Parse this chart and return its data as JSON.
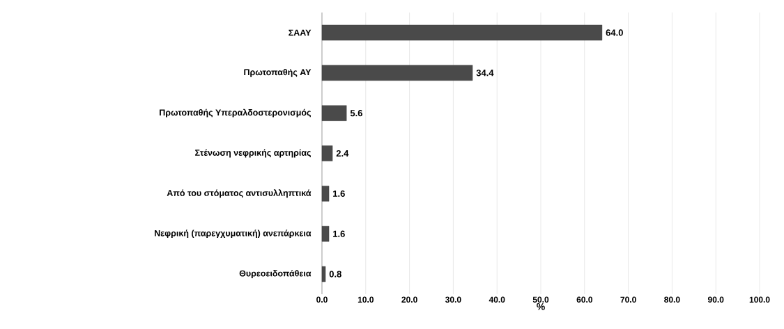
{
  "chart_data": {
    "type": "bar",
    "orientation": "horizontal",
    "categories": [
      "ΣΑΑΥ",
      "Πρωτοπαθής ΑΥ",
      "Πρωτοπαθής Υπεραλδοστερονισμός",
      "Στένωση νεφρικής αρτηρίας",
      "Από του στόματος αντισυλληπτικά",
      "Νεφρική (παρεγχυματική) ανεπάρκεια",
      "Θυρεοειδοπάθεια"
    ],
    "values": [
      64.0,
      34.4,
      5.6,
      2.4,
      1.6,
      1.6,
      0.8
    ],
    "value_labels": [
      "64.0",
      "34.4",
      "5.6",
      "2.4",
      "1.6",
      "1.6",
      "0.8"
    ],
    "color": "#4a4a4a",
    "xlabel": "%",
    "xlim": [
      0,
      100
    ],
    "xticks": [
      {
        "value": 0,
        "label": "0.0"
      },
      {
        "value": 10,
        "label": "10.0"
      },
      {
        "value": 20,
        "label": "20.0"
      },
      {
        "value": 30,
        "label": "30.0"
      },
      {
        "value": 40,
        "label": "40.0"
      },
      {
        "value": 50,
        "label": "50.0"
      },
      {
        "value": 60,
        "label": "60.0"
      },
      {
        "value": 70,
        "label": "70.0"
      },
      {
        "value": 80,
        "label": "80.0"
      },
      {
        "value": 90,
        "label": "90.0"
      },
      {
        "value": 100,
        "label": "100.0"
      }
    ],
    "grid": "x"
  }
}
